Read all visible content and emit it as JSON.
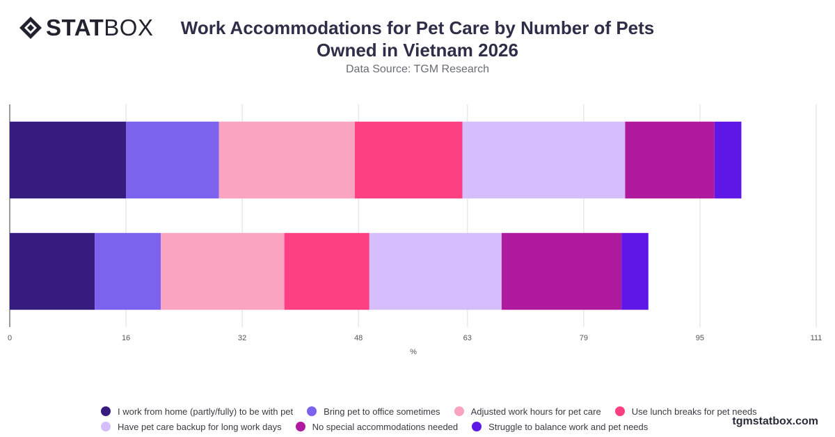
{
  "logo": {
    "bold": "STAT",
    "light": "BOX"
  },
  "header": {
    "title_line1": "Work Accommodations for Pet Care by Number of Pets",
    "title_line2": "Owned in Vietnam 2026",
    "subtitle": "Data Source: TGM Research"
  },
  "footer": {
    "site": "tgmstatbox.com"
  },
  "chart_data": {
    "type": "bar",
    "orientation": "horizontal",
    "stacked": true,
    "title": "Work Accommodations for Pet Care by Number of Pets Owned in Vietnam 2026",
    "xlabel": "%",
    "ylabel": "",
    "xlim": [
      0,
      111
    ],
    "x_ticks": [
      0,
      16,
      32,
      48,
      63,
      79,
      95,
      111
    ],
    "grid": true,
    "legend_position": "bottom",
    "categories": [
      "",
      ""
    ],
    "series": [
      {
        "name": "I work from home (partly/fully) to be with pet",
        "color": "#371C80",
        "values": [
          16,
          11.7
        ]
      },
      {
        "name": "Bring pet to office sometimes",
        "color": "#7C62ED",
        "values": [
          12.8,
          9.1
        ]
      },
      {
        "name": "Adjusted work hours for pet care",
        "color": "#FBA4C2",
        "values": [
          18.7,
          17
        ]
      },
      {
        "name": "Use lunch breaks for pet needs",
        "color": "#FD3F84",
        "values": [
          14.8,
          11.7
        ]
      },
      {
        "name": "Have pet care backup for long work days",
        "color": "#D5BEFB",
        "values": [
          22.4,
          18.2
        ]
      },
      {
        "name": "No special accommodations needed",
        "color": "#B01A9E",
        "values": [
          12.3,
          16.5
        ]
      },
      {
        "name": "Struggle to balance work and pet needs",
        "color": "#5F17E8",
        "values": [
          3.7,
          3.7
        ]
      }
    ]
  }
}
